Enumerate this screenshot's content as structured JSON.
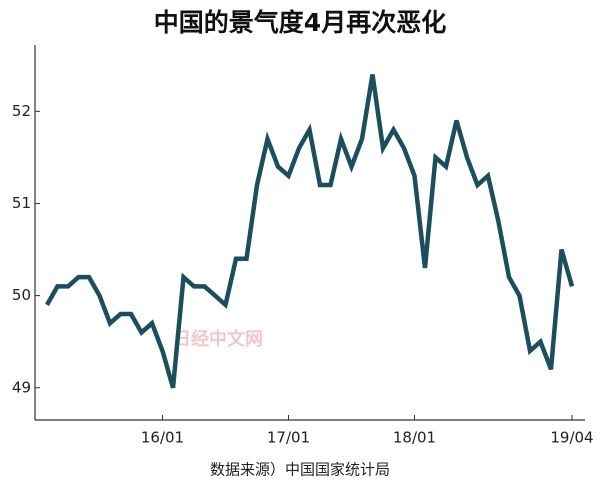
{
  "chart_data": {
    "type": "line",
    "title": "中国的景气度4月再次恶化",
    "source": "数据来源）中国国家统计局",
    "watermark": "日经中文网",
    "categories": [
      null,
      null,
      null,
      null,
      null,
      null,
      null,
      null,
      null,
      null,
      null,
      "16/01",
      null,
      null,
      null,
      null,
      null,
      null,
      null,
      null,
      null,
      null,
      null,
      "17/01",
      null,
      null,
      null,
      null,
      null,
      null,
      null,
      null,
      null,
      null,
      null,
      "18/01",
      null,
      null,
      null,
      null,
      null,
      null,
      null,
      null,
      null,
      null,
      null,
      null,
      null,
      null,
      "19/04"
    ],
    "series": [
      {
        "color": "#1b4f5e",
        "values": [
          49.9,
          50.1,
          50.1,
          50.2,
          50.2,
          50.0,
          49.7,
          49.8,
          49.8,
          49.6,
          49.7,
          49.4,
          49.0,
          50.2,
          50.1,
          50.1,
          50.0,
          49.9,
          50.4,
          50.4,
          51.2,
          51.7,
          51.4,
          51.3,
          51.6,
          51.8,
          51.2,
          51.2,
          51.7,
          51.4,
          51.7,
          52.4,
          51.6,
          51.8,
          51.6,
          51.3,
          50.3,
          51.5,
          51.4,
          51.9,
          51.5,
          51.2,
          51.3,
          50.8,
          50.2,
          50.0,
          49.4,
          49.5,
          49.2,
          50.5,
          50.1
        ]
      }
    ],
    "ylim": [
      48.65,
      52.72
    ],
    "yticks": [
      49,
      50,
      51,
      52
    ]
  }
}
